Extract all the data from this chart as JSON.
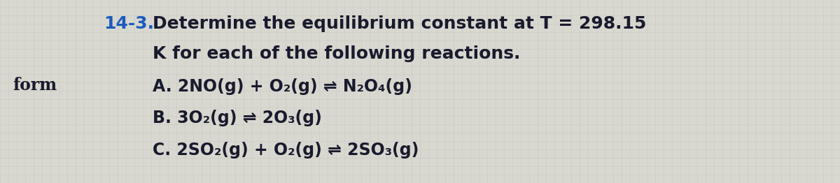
{
  "background_color": "#d8d8d0",
  "left_label": "form",
  "problem_number": "14-3.",
  "problem_number_color": "#1a5bbf",
  "title_line1_pre": "Determine the equilibrium constant at ",
  "title_T": "T",
  "title_line1_post": " = 298.15",
  "title_line2": "K for each of the following reactions.",
  "reaction_A": "A. 2NO(g) + O₂(g) ⇌ N₂O₄(g)",
  "reaction_B": "B. 3O₂(g) ⇌ 2O₃(g)",
  "reaction_C": "C. 2SO₂(g) + O₂(g) ⇌ 2SO₃(g)",
  "text_color": "#1a1a2e",
  "blue_color": "#1a5bbf",
  "font_size_title": 18,
  "font_size_reactions": 17,
  "font_size_left_label": 17,
  "font_size_problem_number": 18,
  "grid_color": "#c0c0b8",
  "grid_alpha": 0.6
}
